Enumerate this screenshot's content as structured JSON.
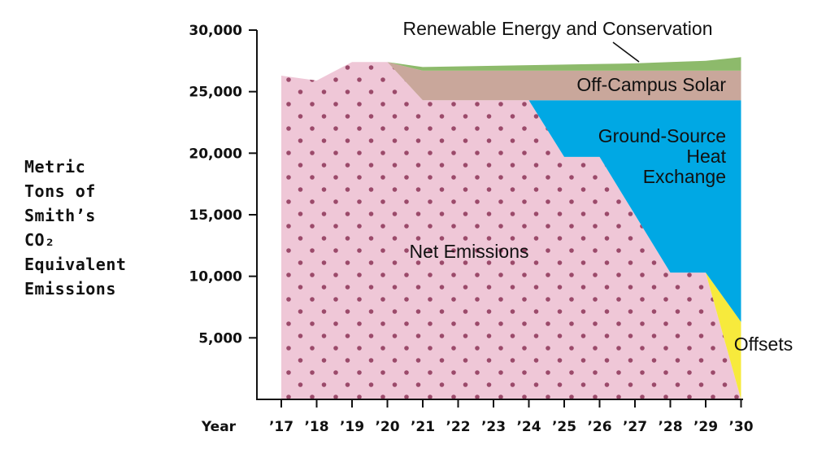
{
  "chart_data": {
    "type": "area",
    "title": "",
    "xlabel": "Year",
    "ylabel_lines": [
      "Metric",
      "Tons of",
      "Smith’s",
      "CO₂",
      "Equivalent",
      "Emissions"
    ],
    "categories": [
      "’17",
      "’18",
      "’19",
      "’20",
      "’21",
      "’22",
      "’23",
      "’24",
      "’25",
      "’26",
      "’27",
      "’28",
      "’29",
      "’30"
    ],
    "ylim": [
      0,
      30000
    ],
    "yticks": [
      5000,
      10000,
      15000,
      20000,
      25000,
      30000
    ],
    "ytick_labels": [
      "5,000",
      "10,000",
      "15,000",
      "20,000",
      "25,000",
      "30,000"
    ],
    "grid": false,
    "stacked": true,
    "series": [
      {
        "name": "Net Emissions",
        "color": "#efc7d7",
        "pattern": "dots",
        "values": [
          26300,
          25900,
          27400,
          27400,
          24300,
          24300,
          24300,
          24300,
          19700,
          19700,
          15000,
          10300,
          10300,
          0
        ]
      },
      {
        "name": "Offsets",
        "color": "#f7ea3c",
        "values": [
          0,
          0,
          0,
          0,
          0,
          0,
          0,
          0,
          0,
          0,
          0,
          0,
          0,
          6300
        ]
      },
      {
        "name": "Ground-Source Heat Exchange",
        "color": "#00a8e4",
        "values": [
          0,
          0,
          0,
          0,
          0,
          0,
          0,
          0,
          4600,
          4600,
          9300,
          14000,
          14000,
          18000
        ]
      },
      {
        "name": "Off-Campus Solar",
        "color": "#c9a79b",
        "values": [
          0,
          0,
          0,
          0,
          2400,
          2400,
          2400,
          2400,
          2400,
          2400,
          2400,
          2400,
          2400,
          2400
        ]
      },
      {
        "name": "Renewable Energy and Conservation",
        "color": "#8dba6b",
        "values": [
          0,
          0,
          0,
          0,
          300,
          350,
          400,
          450,
          500,
          550,
          600,
          700,
          800,
          1100
        ]
      }
    ],
    "annotations": {
      "renewable": "Renewable Energy and Conservation",
      "solar": "Off-Campus Solar",
      "ground_lines": [
        "Ground-Source",
        "Heat",
        "Exchange"
      ],
      "net": "Net Emissions",
      "offsets": "Offsets"
    }
  }
}
